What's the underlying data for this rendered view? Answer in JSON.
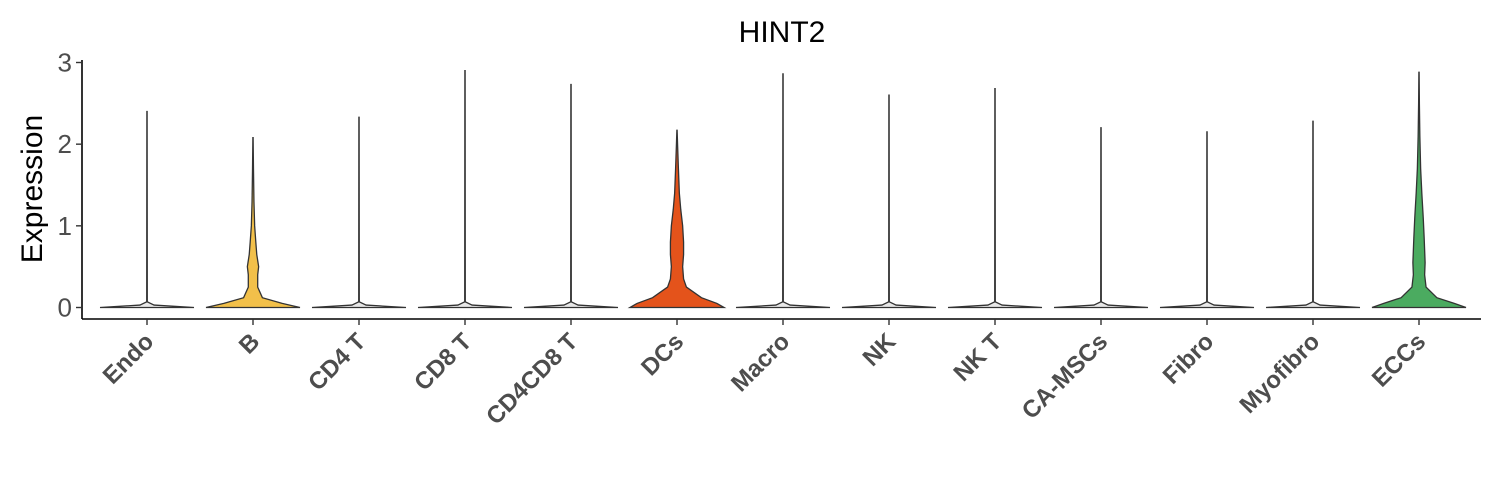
{
  "chart_data": {
    "type": "violin",
    "title": "HINT2",
    "xlabel": "",
    "ylabel": "Expression",
    "ylim": [
      -0.15,
      3.05
    ],
    "yticks": [
      "0",
      "1",
      "2",
      "3"
    ],
    "categories": [
      "Endo",
      "B",
      "CD4 T",
      "CD8 T",
      "CD4CD8 T",
      "DCs",
      "Macro",
      "NK",
      "NK T",
      "CA-MSCs",
      "Fibro",
      "Myofibro",
      "ECCs"
    ],
    "max_values": [
      2.4,
      2.08,
      2.33,
      2.9,
      2.73,
      2.17,
      2.86,
      2.6,
      2.68,
      2.2,
      2.15,
      2.28,
      2.88
    ],
    "colors": [
      "#e8e8e8",
      "#f2c04a",
      "#e8e8e8",
      "#e8e8e8",
      "#e8e8e8",
      "#e4531b",
      "#e8e8e8",
      "#e8e8e8",
      "#e8e8e8",
      "#e8e8e8",
      "#e8e8e8",
      "#e8e8e8",
      "#4bab60"
    ],
    "density_profiles": {
      "B": [
        [
          0,
          1.0
        ],
        [
          0.05,
          0.62
        ],
        [
          0.12,
          0.2
        ],
        [
          0.25,
          0.1
        ],
        [
          0.4,
          0.1
        ],
        [
          0.5,
          0.12
        ],
        [
          0.65,
          0.08
        ],
        [
          0.8,
          0.06
        ],
        [
          1.0,
          0.035
        ],
        [
          1.3,
          0.02
        ],
        [
          1.7,
          0.01
        ],
        [
          2.08,
          0.004
        ]
      ],
      "DCs": [
        [
          0,
          1.0
        ],
        [
          0.05,
          0.85
        ],
        [
          0.12,
          0.52
        ],
        [
          0.25,
          0.2
        ],
        [
          0.35,
          0.14
        ],
        [
          0.5,
          0.12
        ],
        [
          0.65,
          0.14
        ],
        [
          0.8,
          0.14
        ],
        [
          1.0,
          0.12
        ],
        [
          1.2,
          0.08
        ],
        [
          1.4,
          0.05
        ],
        [
          1.7,
          0.03
        ],
        [
          2.0,
          0.012
        ],
        [
          2.17,
          0.004
        ]
      ],
      "ECCs": [
        [
          0,
          1.0
        ],
        [
          0.05,
          0.75
        ],
        [
          0.12,
          0.38
        ],
        [
          0.25,
          0.15
        ],
        [
          0.4,
          0.12
        ],
        [
          0.55,
          0.13
        ],
        [
          0.7,
          0.12
        ],
        [
          0.85,
          0.11
        ],
        [
          1.1,
          0.09
        ],
        [
          1.4,
          0.06
        ],
        [
          1.7,
          0.035
        ],
        [
          2.1,
          0.018
        ],
        [
          2.5,
          0.008
        ],
        [
          2.88,
          0.003
        ]
      ],
      "default": [
        [
          0,
          1.0
        ],
        [
          0.03,
          0.15
        ],
        [
          0.07,
          0.006
        ],
        [
          3.0,
          0.004
        ]
      ]
    }
  }
}
